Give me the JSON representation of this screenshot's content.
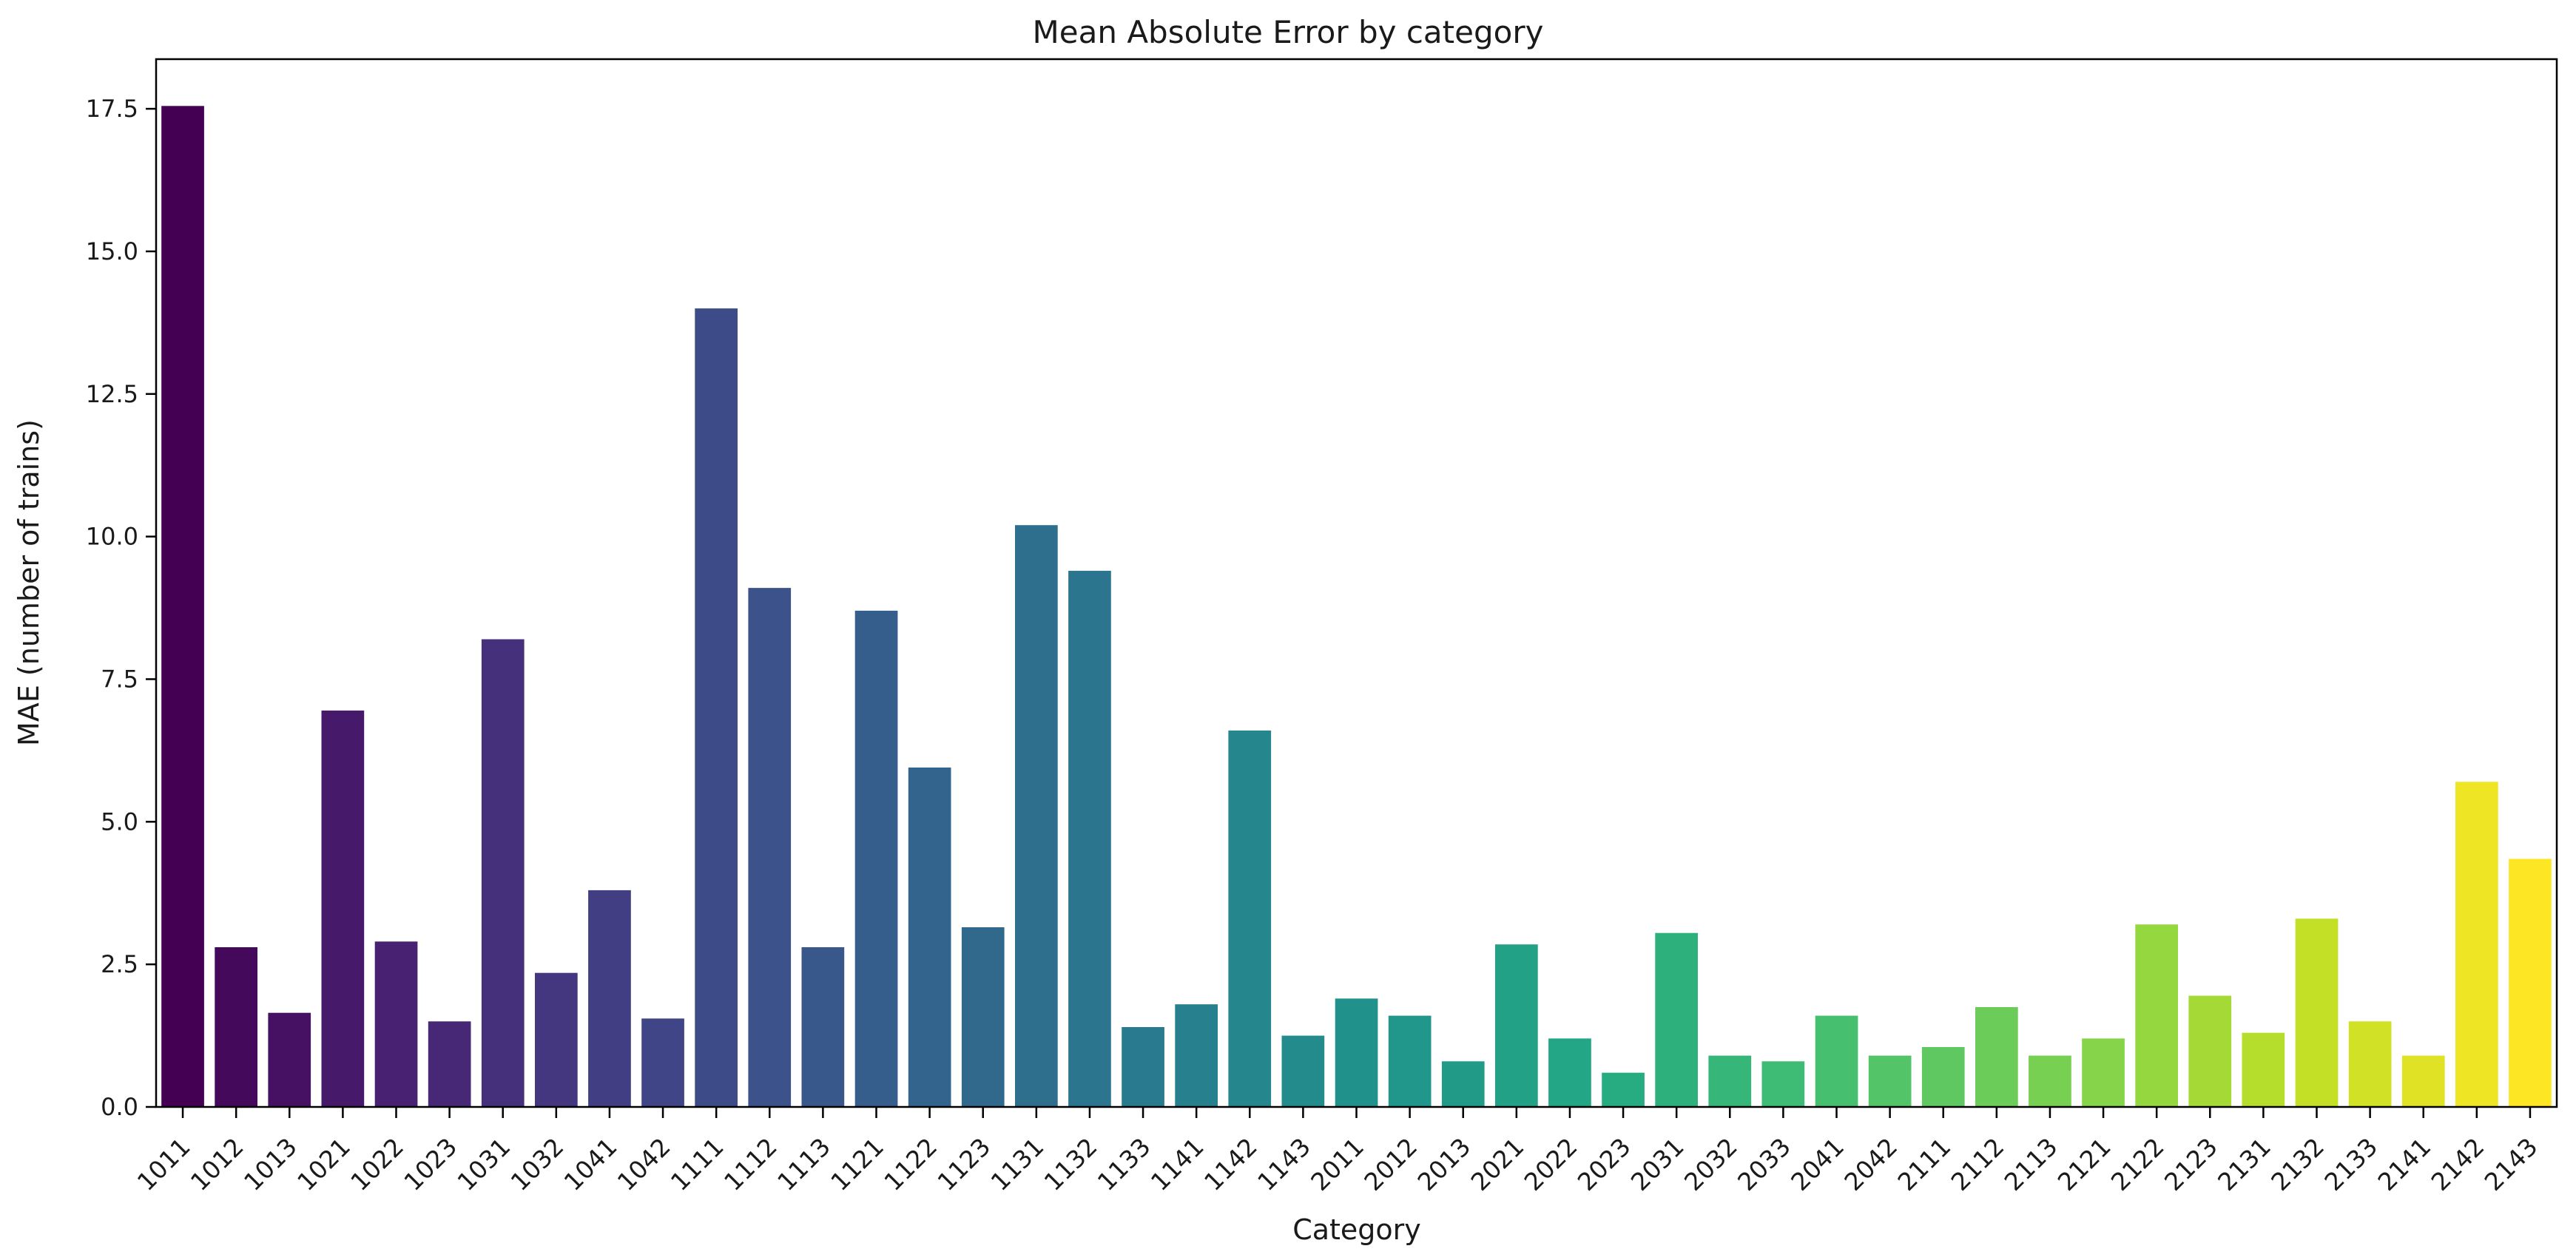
{
  "chart_data": {
    "type": "bar",
    "title": "Mean Absolute Error by category",
    "xlabel": "Category",
    "ylabel": "MAE (number of trains)",
    "categories": [
      "1011",
      "1012",
      "1013",
      "1021",
      "1022",
      "1023",
      "1031",
      "1032",
      "1041",
      "1042",
      "1111",
      "1112",
      "1113",
      "1121",
      "1122",
      "1123",
      "1131",
      "1132",
      "1133",
      "1141",
      "1142",
      "1143",
      "2011",
      "2012",
      "2013",
      "2021",
      "2022",
      "2023",
      "2031",
      "2032",
      "2033",
      "2041",
      "2042",
      "2111",
      "2112",
      "2113",
      "2121",
      "2122",
      "2123",
      "2131",
      "2132",
      "2133",
      "2141",
      "2142",
      "2143"
    ],
    "values": [
      17.55,
      2.8,
      1.65,
      6.95,
      2.9,
      1.5,
      8.2,
      2.35,
      3.8,
      1.55,
      14.0,
      9.1,
      2.8,
      8.7,
      5.95,
      3.15,
      10.2,
      9.4,
      1.4,
      1.8,
      6.6,
      1.25,
      1.9,
      1.6,
      0.8,
      2.85,
      1.2,
      0.6,
      3.05,
      0.9,
      0.8,
      1.6,
      0.9,
      1.05,
      1.75,
      0.9,
      1.2,
      3.2,
      1.95,
      1.3,
      3.3,
      1.5,
      0.9,
      5.7,
      4.35
    ],
    "ylim": [
      0,
      18.37
    ],
    "yticks": [
      0,
      2.5,
      5,
      7.5,
      10,
      12.5,
      15,
      17.5
    ],
    "ytick_labels": [
      "0.0",
      "2.5",
      "5.0",
      "7.5",
      "10.0",
      "12.5",
      "15.0",
      "17.5"
    ],
    "xtick_rotation": 45,
    "grid": false,
    "legend": "none",
    "bar_palette": "viridis",
    "palette_stops": [
      "#440154",
      "#482475",
      "#414487",
      "#355f8d",
      "#2a788e",
      "#21918c",
      "#22a884",
      "#44bf70",
      "#7ad151",
      "#bddf26",
      "#fde725"
    ],
    "background_color": "#ffffff",
    "spine_color": "#000000",
    "text_color": "#1a1a1a"
  }
}
